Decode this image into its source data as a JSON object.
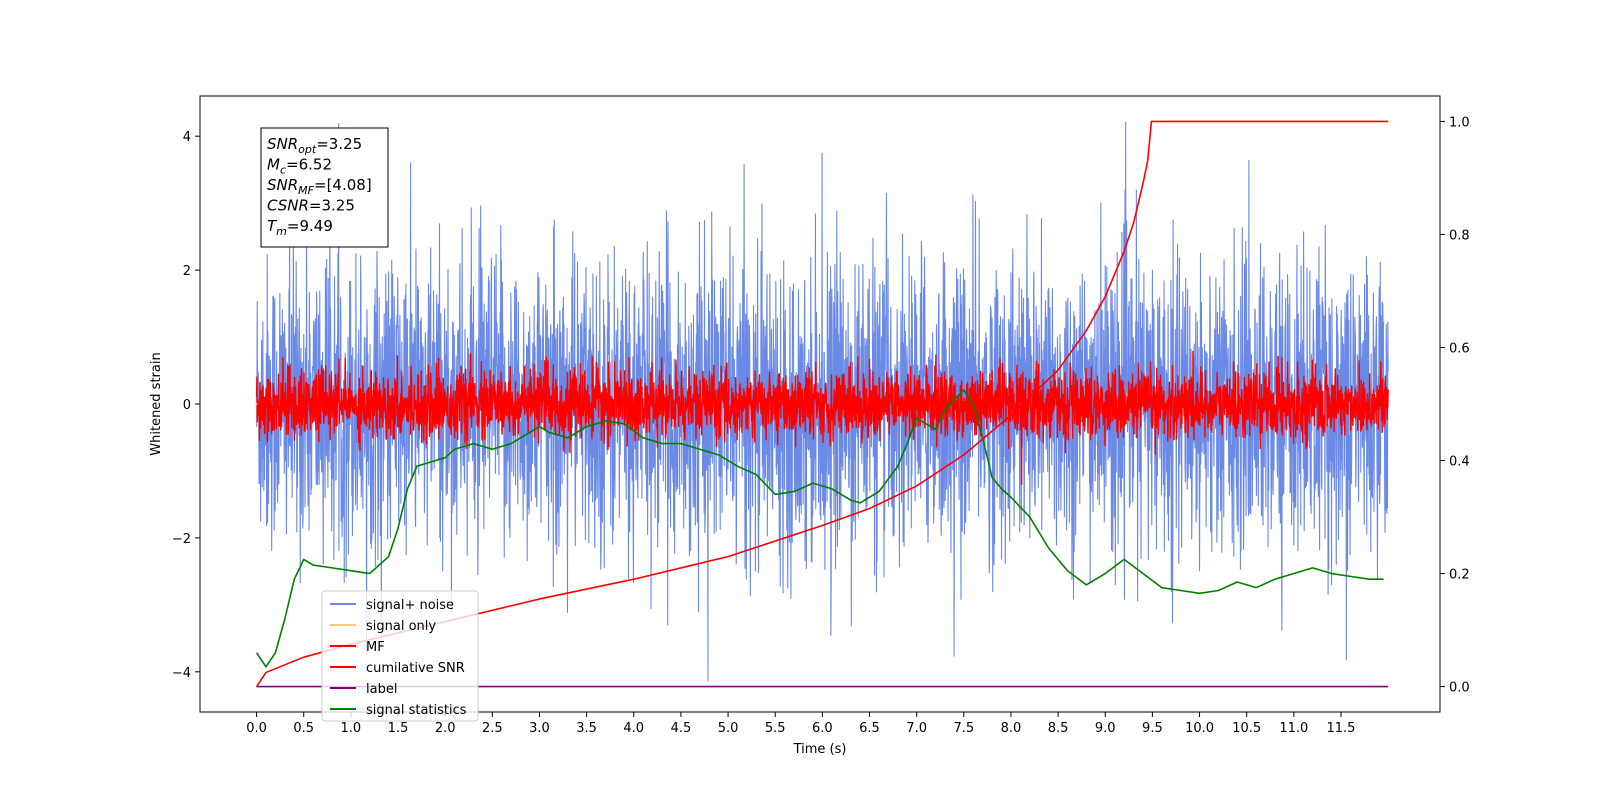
{
  "chart_data": {
    "type": "line",
    "xlabel": "Time (s)",
    "ylabel": "Whitened strain",
    "xlim": [
      -0.6,
      12.55
    ],
    "ylim": [
      -4.6,
      4.6
    ],
    "y2lim": [
      -0.045,
      1.045
    ],
    "x_ticks": [
      "0.0",
      "0.5",
      "1.0",
      "1.5",
      "2.0",
      "2.5",
      "3.0",
      "3.5",
      "4.0",
      "4.5",
      "5.0",
      "5.5",
      "6.0",
      "6.5",
      "7.0",
      "7.5",
      "8.0",
      "8.5",
      "9.0",
      "9.5",
      "10.0",
      "10.5",
      "11.0",
      "11.5"
    ],
    "y_ticks": [
      "−4",
      "−2",
      "0",
      "2",
      "4"
    ],
    "y2_ticks": [
      "0.0",
      "0.2",
      "0.4",
      "0.6",
      "0.8",
      "1.0"
    ],
    "legend_position": "lower-left",
    "info_box": {
      "lines": [
        {
          "sym": "SNR",
          "sub": "opt",
          "value": "=3.25"
        },
        {
          "sym": "M",
          "sub": "c",
          "value": "=6.52"
        },
        {
          "sym": "SNR",
          "sub": "MF",
          "value": "=[4.08]"
        },
        {
          "sym": "CSNR",
          "sub": "",
          "value": "=3.25"
        },
        {
          "sym": "T",
          "sub": "m",
          "value": "=9.49"
        }
      ]
    },
    "series": [
      {
        "name": "signal+ noise",
        "color": "#6b8ae6",
        "axis": "left",
        "kind": "noise",
        "std": 1.1,
        "x_range": [
          0,
          12
        ]
      },
      {
        "name": "signal only",
        "color": "#f7c97a",
        "axis": "left",
        "kind": "flat",
        "value": 0
      },
      {
        "name": "MF",
        "color": "#ff0000",
        "axis": "left",
        "kind": "noise",
        "std": 0.25,
        "x_range": [
          0,
          12
        ]
      },
      {
        "name": "cumilative SNR",
        "color": "#ff0000",
        "axis": "right",
        "kind": "curve",
        "x": [
          0,
          0.1,
          0.5,
          1.0,
          2.0,
          3.0,
          4.0,
          5.0,
          6.0,
          6.5,
          7.0,
          7.5,
          8.0,
          8.5,
          8.8,
          9.0,
          9.2,
          9.3,
          9.4,
          9.45,
          9.49,
          12.0
        ],
        "y": [
          0.0,
          0.025,
          0.052,
          0.075,
          0.115,
          0.155,
          0.19,
          0.23,
          0.285,
          0.315,
          0.355,
          0.41,
          0.48,
          0.56,
          0.63,
          0.69,
          0.77,
          0.82,
          0.89,
          0.93,
          1.0,
          1.0
        ]
      },
      {
        "name": "label",
        "color": "#800080",
        "axis": "right",
        "kind": "curve",
        "x": [
          0,
          12
        ],
        "y": [
          0.0,
          0.0
        ]
      },
      {
        "name": "signal statistics",
        "color": "#008000",
        "axis": "right",
        "kind": "curve",
        "x": [
          0,
          0.1,
          0.2,
          0.3,
          0.4,
          0.5,
          0.6,
          0.8,
          1.0,
          1.2,
          1.4,
          1.5,
          1.6,
          1.7,
          1.8,
          2.0,
          2.1,
          2.3,
          2.5,
          2.7,
          2.9,
          3.0,
          3.1,
          3.3,
          3.5,
          3.7,
          3.9,
          4.1,
          4.3,
          4.5,
          4.7,
          4.9,
          5.1,
          5.3,
          5.5,
          5.7,
          5.9,
          6.1,
          6.3,
          6.4,
          6.6,
          6.8,
          6.9,
          7.0,
          7.1,
          7.2,
          7.3,
          7.5,
          7.6,
          7.7,
          7.8,
          7.9,
          8.0,
          8.2,
          8.4,
          8.6,
          8.8,
          9.0,
          9.2,
          9.4,
          9.6,
          9.8,
          10.0,
          10.2,
          10.4,
          10.6,
          10.8,
          11.0,
          11.2,
          11.4,
          11.6,
          11.8,
          11.95
        ],
        "y": [
          0.06,
          0.035,
          0.06,
          0.12,
          0.19,
          0.225,
          0.215,
          0.21,
          0.205,
          0.2,
          0.23,
          0.28,
          0.35,
          0.39,
          0.395,
          0.405,
          0.42,
          0.43,
          0.42,
          0.43,
          0.45,
          0.46,
          0.45,
          0.44,
          0.46,
          0.47,
          0.465,
          0.44,
          0.43,
          0.43,
          0.42,
          0.41,
          0.39,
          0.375,
          0.34,
          0.345,
          0.36,
          0.35,
          0.33,
          0.325,
          0.345,
          0.39,
          0.43,
          0.475,
          0.465,
          0.455,
          0.49,
          0.525,
          0.5,
          0.44,
          0.37,
          0.35,
          0.335,
          0.3,
          0.245,
          0.205,
          0.18,
          0.2,
          0.225,
          0.2,
          0.175,
          0.17,
          0.165,
          0.17,
          0.185,
          0.175,
          0.19,
          0.2,
          0.21,
          0.2,
          0.195,
          0.19,
          0.19
        ]
      }
    ]
  }
}
